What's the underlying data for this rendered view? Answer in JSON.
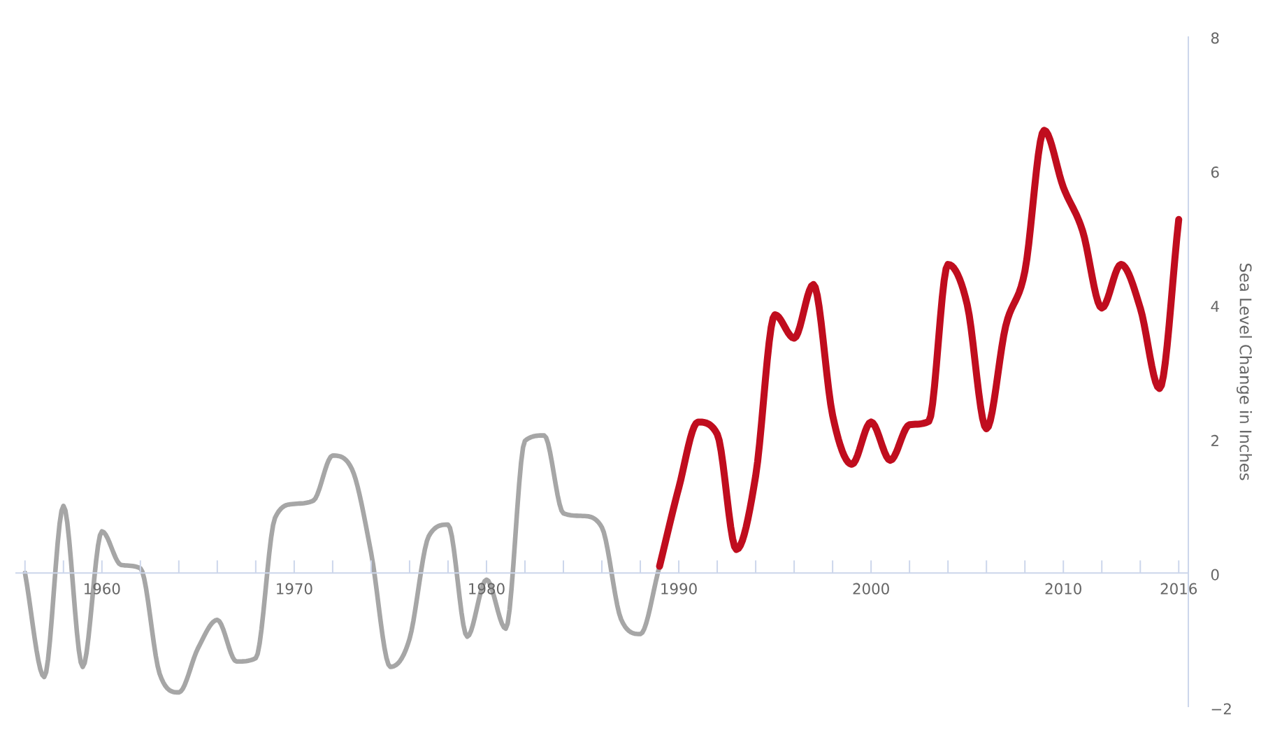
{
  "chart_data": {
    "type": "line",
    "ylabel": "Sea Level Change in Inches",
    "xlim": [
      1955.5,
      2016.5
    ],
    "xticks": [
      {
        "value": 1956,
        "label": null
      },
      {
        "value": 1958,
        "label": null
      },
      1960,
      {
        "value": 1962,
        "label": null
      },
      {
        "value": 1964,
        "label": null
      },
      {
        "value": 1966,
        "label": null
      },
      {
        "value": 1968,
        "label": null
      },
      1970,
      {
        "value": 1972,
        "label": null
      },
      {
        "value": 1974,
        "label": null
      },
      {
        "value": 1976,
        "label": null
      },
      {
        "value": 1978,
        "label": null
      },
      1980,
      {
        "value": 1982,
        "label": null
      },
      {
        "value": 1984,
        "label": null
      },
      {
        "value": 1986,
        "label": null
      },
      {
        "value": 1988,
        "label": null
      },
      1990,
      {
        "value": 1992,
        "label": null
      },
      {
        "value": 1994,
        "label": null
      },
      {
        "value": 1996,
        "label": null
      },
      {
        "value": 1998,
        "label": null
      },
      2000,
      {
        "value": 2002,
        "label": null
      },
      {
        "value": 2004,
        "label": null
      },
      {
        "value": 2006,
        "label": null
      },
      {
        "value": 2008,
        "label": null
      },
      2010,
      {
        "value": 2012,
        "label": null
      },
      {
        "value": 2014,
        "label": null
      },
      2016
    ],
    "ylim": [
      -2,
      8
    ],
    "yticks": [
      {
        "value": -2,
        "label": "−2"
      },
      0,
      2,
      4,
      6,
      8
    ],
    "series": [
      {
        "color": "#a6a6a6",
        "x": [
          1956,
          1957,
          1958,
          1959,
          1960,
          1961,
          1962,
          1963,
          1964,
          1965,
          1966,
          1967,
          1968,
          1969,
          1970,
          1971,
          1972,
          1973,
          1974,
          1975,
          1976,
          1977,
          1978,
          1979,
          1980,
          1981,
          1982,
          1983,
          1984,
          1985,
          1986,
          1987,
          1988,
          1989
        ],
        "values": [
          0,
          -1.55,
          1.0,
          -1.4,
          0.62,
          0.12,
          0.07,
          -1.5,
          -1.78,
          -1.12,
          -0.7,
          -1.32,
          -1.27,
          0.82,
          1.03,
          1.08,
          1.75,
          1.55,
          0.3,
          -1.4,
          -0.98,
          0.55,
          0.72,
          -0.95,
          -0.1,
          -0.83,
          1.97,
          2.05,
          0.89,
          0.85,
          0.68,
          -0.69,
          -0.91,
          0.1
        ]
      },
      {
        "color": "#c00d1e",
        "x": [
          1989,
          1990,
          1991,
          1992,
          1993,
          1994,
          1995,
          1996,
          1997,
          1998,
          1999,
          2000,
          2001,
          2002,
          2003,
          2004,
          2005,
          2006,
          2007,
          2008,
          2009,
          2010,
          2011,
          2012,
          2013,
          2014,
          2015,
          2016
        ],
        "values": [
          0.1,
          1.27,
          2.25,
          2.07,
          0.35,
          1.45,
          3.85,
          3.5,
          4.3,
          2.35,
          1.62,
          2.25,
          1.68,
          2.21,
          2.26,
          4.6,
          4.0,
          2.15,
          3.68,
          4.5,
          6.6,
          5.75,
          5.1,
          3.95,
          4.6,
          3.95,
          2.75,
          5.27
        ]
      }
    ]
  }
}
